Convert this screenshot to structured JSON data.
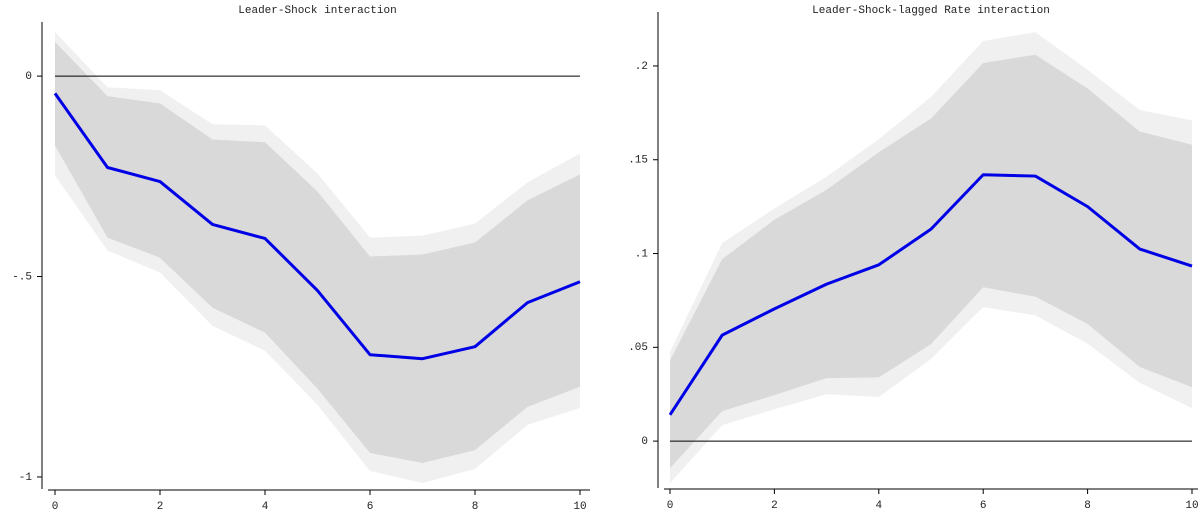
{
  "chart_data": [
    {
      "type": "line",
      "title": "Leader-Shock interaction",
      "x": [
        0,
        1,
        2,
        3,
        4,
        5,
        6,
        7,
        8,
        9,
        10
      ],
      "xlim": [
        0,
        10
      ],
      "xticks": [
        0,
        2,
        4,
        6,
        8,
        10
      ],
      "ylim": [
        -1.03,
        0.115
      ],
      "yticks": [
        {
          "value": -1,
          "label": "-1"
        },
        {
          "value": -0.5,
          "label": "-.5"
        },
        0
      ],
      "reference_line": 0,
      "bands": [
        {
          "color": "#f0f0f0",
          "upper": [
            0.11,
            -0.028,
            -0.035,
            -0.12,
            -0.123,
            -0.243,
            -0.403,
            -0.398,
            -0.368,
            -0.265,
            -0.193
          ],
          "lower": [
            -0.248,
            -0.435,
            -0.49,
            -0.623,
            -0.685,
            -0.82,
            -0.985,
            -1.015,
            -0.98,
            -0.87,
            -0.828
          ]
        },
        {
          "color": "#d9d9d9",
          "upper": [
            0.085,
            -0.05,
            -0.068,
            -0.158,
            -0.165,
            -0.288,
            -0.45,
            -0.445,
            -0.415,
            -0.31,
            -0.245
          ],
          "lower": [
            -0.173,
            -0.403,
            -0.453,
            -0.578,
            -0.64,
            -0.78,
            -0.94,
            -0.965,
            -0.933,
            -0.825,
            -0.775
          ]
        }
      ],
      "series": [
        {
          "color": "#0000e6",
          "values": [
            -0.043,
            -0.228,
            -0.263,
            -0.37,
            -0.405,
            -0.535,
            -0.695,
            -0.705,
            -0.675,
            -0.565,
            -0.513
          ]
        }
      ]
    },
    {
      "type": "line",
      "title": "Leader-Shock-lagged Rate interaction",
      "x": [
        0,
        1,
        2,
        3,
        4,
        5,
        6,
        7,
        8,
        9,
        10
      ],
      "xlim": [
        0,
        10
      ],
      "xticks": [
        0,
        2,
        4,
        6,
        8,
        10
      ],
      "ylim": [
        -0.025,
        0.2245
      ],
      "yticks": [
        0,
        {
          "value": 0.05,
          "label": ".05"
        },
        {
          "value": 0.1,
          "label": ".1"
        },
        {
          "value": 0.15,
          "label": ".15"
        },
        {
          "value": 0.2,
          "label": ".2"
        }
      ],
      "reference_line": 0,
      "bands": [
        {
          "color": "#f0f0f0",
          "upper": [
            0.0475,
            0.1056,
            0.124,
            0.141,
            0.161,
            0.1835,
            0.2133,
            0.218,
            0.198,
            0.1765,
            0.171
          ],
          "lower": [
            -0.0224,
            0.0085,
            0.017,
            0.025,
            0.0235,
            0.0437,
            0.0715,
            0.067,
            0.052,
            0.031,
            0.0176
          ]
        },
        {
          "color": "#d9d9d9",
          "upper": [
            0.043,
            0.097,
            0.118,
            0.134,
            0.154,
            0.172,
            0.2016,
            0.206,
            0.188,
            0.165,
            0.158
          ],
          "lower": [
            -0.0144,
            0.016,
            0.0245,
            0.0336,
            0.034,
            0.0517,
            0.082,
            0.077,
            0.0624,
            0.0395,
            0.0288
          ]
        }
      ],
      "series": [
        {
          "color": "#0000e6",
          "values": [
            0.014,
            0.0565,
            0.0705,
            0.0837,
            0.094,
            0.113,
            0.142,
            0.1413,
            0.125,
            0.1024,
            0.0933
          ]
        }
      ]
    }
  ]
}
